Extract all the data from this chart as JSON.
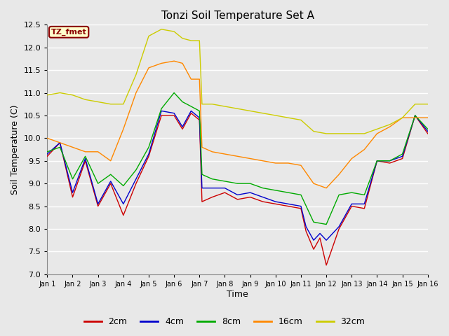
{
  "title": "Tonzi Soil Temperature Set A",
  "xlabel": "Time",
  "ylabel": "Soil Temperature (C)",
  "ylim": [
    7.0,
    12.5
  ],
  "xlim": [
    0,
    15
  ],
  "x_ticks": [
    0,
    1,
    2,
    3,
    4,
    5,
    6,
    7,
    8,
    9,
    10,
    11,
    12,
    13,
    14,
    15
  ],
  "x_tick_labels": [
    "Jan 1",
    "Jan 2",
    "Jan 3",
    "Jan 4",
    "Jan 5",
    "Jan 6",
    "Jan 7",
    "Jan 8",
    "Jan 9",
    "Jan 10",
    "Jan 11",
    "Jan 12",
    "Jan 13",
    "Jan 14",
    "Jan 15",
    "Jan 16"
  ],
  "y_ticks": [
    7.0,
    7.5,
    8.0,
    8.5,
    9.0,
    9.5,
    10.0,
    10.5,
    11.0,
    11.5,
    12.0,
    12.5
  ],
  "background_color": "#e8e8e8",
  "plot_bg_color": "#e8e8e8",
  "grid_color": "#ffffff",
  "legend_label": "TZ_fmet",
  "legend_box_color": "#ffffcc",
  "legend_box_border": "#8b0000",
  "series": {
    "2cm": {
      "color": "#cc0000",
      "x": [
        0,
        0.5,
        1.0,
        1.5,
        2.0,
        2.5,
        3.0,
        3.5,
        4.0,
        4.5,
        5.0,
        5.33,
        5.67,
        6.0,
        6.1,
        6.5,
        7.0,
        7.5,
        8.0,
        8.5,
        9.0,
        9.5,
        10.0,
        10.2,
        10.5,
        10.75,
        11.0,
        11.5,
        12.0,
        12.5,
        13.0,
        13.5,
        14.0,
        14.5,
        15.0
      ],
      "y": [
        9.6,
        9.9,
        8.7,
        9.5,
        8.5,
        9.0,
        8.3,
        9.0,
        9.6,
        10.5,
        10.5,
        10.2,
        10.55,
        10.4,
        8.6,
        8.7,
        8.8,
        8.65,
        8.7,
        8.6,
        8.55,
        8.5,
        8.45,
        7.95,
        7.55,
        7.8,
        7.2,
        8.0,
        8.5,
        8.45,
        9.5,
        9.45,
        9.55,
        10.5,
        10.1
      ]
    },
    "4cm": {
      "color": "#0000cc",
      "x": [
        0,
        0.5,
        1.0,
        1.5,
        2.0,
        2.5,
        3.0,
        3.5,
        4.0,
        4.5,
        5.0,
        5.33,
        5.67,
        6.0,
        6.1,
        6.5,
        7.0,
        7.5,
        8.0,
        8.5,
        9.0,
        9.5,
        10.0,
        10.2,
        10.5,
        10.75,
        11.0,
        11.5,
        12.0,
        12.5,
        13.0,
        13.5,
        14.0,
        14.5,
        15.0
      ],
      "y": [
        9.65,
        9.9,
        8.8,
        9.55,
        8.55,
        9.05,
        8.55,
        9.1,
        9.65,
        10.6,
        10.55,
        10.25,
        10.6,
        10.45,
        8.9,
        8.9,
        8.9,
        8.75,
        8.8,
        8.7,
        8.6,
        8.55,
        8.5,
        8.05,
        7.75,
        7.9,
        7.75,
        8.05,
        8.55,
        8.55,
        9.5,
        9.5,
        9.6,
        10.5,
        10.15
      ]
    },
    "8cm": {
      "color": "#00aa00",
      "x": [
        0,
        0.5,
        1.0,
        1.5,
        2.0,
        2.5,
        3.0,
        3.5,
        4.0,
        4.5,
        5.0,
        5.33,
        5.67,
        6.0,
        6.1,
        6.5,
        7.0,
        7.5,
        8.0,
        8.5,
        9.0,
        9.5,
        10.0,
        10.5,
        11.0,
        11.5,
        12.0,
        12.5,
        13.0,
        13.5,
        14.0,
        14.5,
        15.0
      ],
      "y": [
        9.7,
        9.8,
        9.1,
        9.6,
        9.0,
        9.2,
        8.95,
        9.3,
        9.8,
        10.65,
        11.0,
        10.8,
        10.7,
        10.6,
        9.2,
        9.1,
        9.05,
        9.0,
        9.0,
        8.9,
        8.85,
        8.8,
        8.75,
        8.15,
        8.1,
        8.75,
        8.8,
        8.75,
        9.5,
        9.5,
        9.65,
        10.5,
        10.2
      ]
    },
    "16cm": {
      "color": "#ff8800",
      "x": [
        0,
        0.5,
        1.0,
        1.5,
        2.0,
        2.5,
        3.0,
        3.5,
        4.0,
        4.5,
        5.0,
        5.33,
        5.67,
        6.0,
        6.1,
        6.5,
        7.0,
        7.5,
        8.0,
        8.5,
        9.0,
        9.5,
        10.0,
        10.5,
        11.0,
        11.5,
        12.0,
        12.5,
        13.0,
        13.5,
        14.0,
        14.5,
        15.0
      ],
      "y": [
        10.0,
        9.9,
        9.8,
        9.7,
        9.7,
        9.5,
        10.2,
        11.0,
        11.55,
        11.65,
        11.7,
        11.65,
        11.3,
        11.3,
        9.8,
        9.7,
        9.65,
        9.6,
        9.55,
        9.5,
        9.45,
        9.45,
        9.4,
        9.0,
        8.9,
        9.2,
        9.55,
        9.75,
        10.1,
        10.25,
        10.45,
        10.45,
        10.45
      ]
    },
    "32cm": {
      "color": "#cccc00",
      "x": [
        0,
        0.5,
        1.0,
        1.5,
        2.0,
        2.5,
        3.0,
        3.5,
        4.0,
        4.5,
        5.0,
        5.33,
        5.67,
        6.0,
        6.1,
        6.5,
        7.0,
        7.5,
        8.0,
        8.5,
        9.0,
        9.5,
        10.0,
        10.5,
        11.0,
        11.5,
        12.0,
        12.5,
        13.0,
        13.5,
        14.0,
        14.5,
        15.0
      ],
      "y": [
        10.95,
        11.0,
        10.95,
        10.85,
        10.8,
        10.75,
        10.75,
        11.4,
        12.25,
        12.4,
        12.35,
        12.2,
        12.15,
        12.15,
        10.75,
        10.75,
        10.7,
        10.65,
        10.6,
        10.55,
        10.5,
        10.45,
        10.4,
        10.15,
        10.1,
        10.1,
        10.1,
        10.1,
        10.2,
        10.3,
        10.45,
        10.75,
        10.75
      ]
    }
  },
  "legend_entries": [
    "2cm",
    "4cm",
    "8cm",
    "16cm",
    "32cm"
  ],
  "legend_colors": [
    "#cc0000",
    "#0000cc",
    "#00aa00",
    "#ff8800",
    "#cccc00"
  ]
}
